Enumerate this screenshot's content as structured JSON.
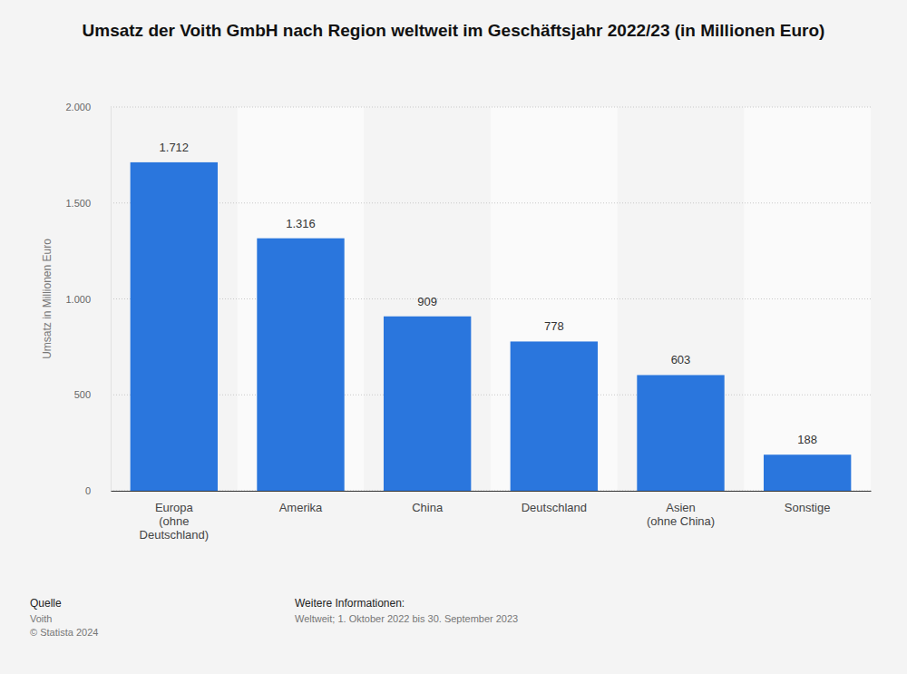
{
  "chart_data": {
    "type": "bar",
    "title": "Umsatz der Voith GmbH nach Region weltweit im Geschäftsjahr 2022/23 (in Millionen Euro)",
    "y_label": "Umsatz in Millionen Euro",
    "categories": [
      "Europa\n(ohne\nDeutschland)",
      "Amerika",
      "China",
      "Deutschland",
      "Asien\n(ohne China)",
      "Sonstige"
    ],
    "values": [
      1712,
      1316,
      909,
      778,
      603,
      188
    ],
    "value_labels": [
      "1.712",
      "1.316",
      "909",
      "778",
      "603",
      "188"
    ],
    "color": "#2a76dd",
    "ylim": [
      0,
      2000
    ],
    "yticks": [
      0,
      500,
      {
        "value": 1000,
        "label": "1.000"
      },
      {
        "value": 1500,
        "label": "1.500"
      },
      {
        "value": 2000,
        "label": "2.000"
      }
    ],
    "grid": true,
    "data_labels": true,
    "source_label": "Quelle",
    "source": "Voith",
    "copyright": "© Statista 2024",
    "info_label": "Weitere Informationen:",
    "info": "Weltweit; 1. Oktober 2022 bis 30. September 2023"
  }
}
